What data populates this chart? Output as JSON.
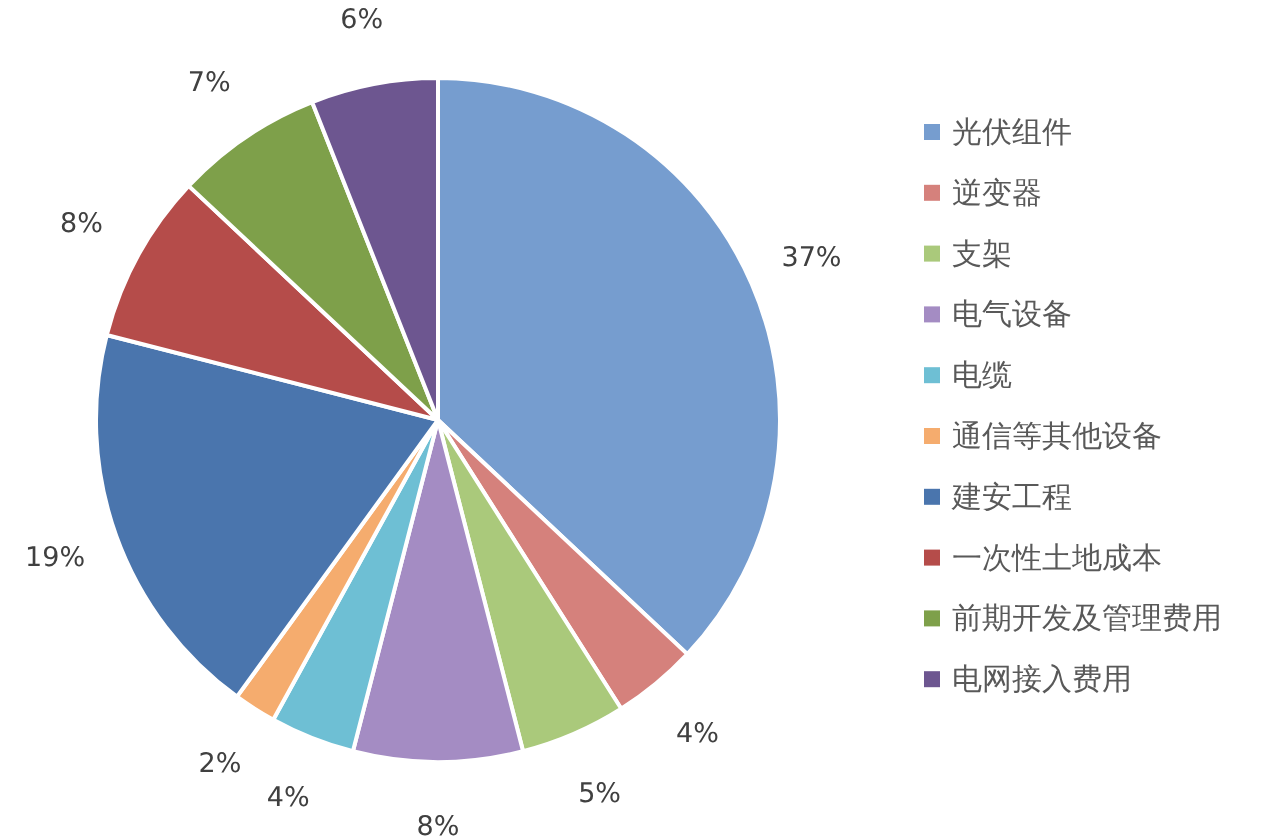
{
  "chart_data": {
    "type": "pie",
    "categories": [
      "光伏组件",
      "逆变器",
      "支架",
      "电气设备",
      "电缆",
      "通信等其他设备",
      "建安工程",
      "一次性土地成本",
      "前期开发及管理费用",
      "电网接入费用"
    ],
    "values": [
      37,
      4,
      5,
      8,
      4,
      2,
      19,
      8,
      7,
      6
    ],
    "colors": [
      "#769dcf",
      "#d5817c",
      "#aac97b",
      "#a48cc3",
      "#6ebfd4",
      "#f5ac6e",
      "#4a75ad",
      "#b54c4a",
      "#7ea04a",
      "#6d5690"
    ],
    "value_labels": [
      "37%",
      "4%",
      "5%",
      "8%",
      "4%",
      "2%",
      "19%",
      "8%",
      "7%",
      "6%"
    ],
    "legend": "right"
  }
}
